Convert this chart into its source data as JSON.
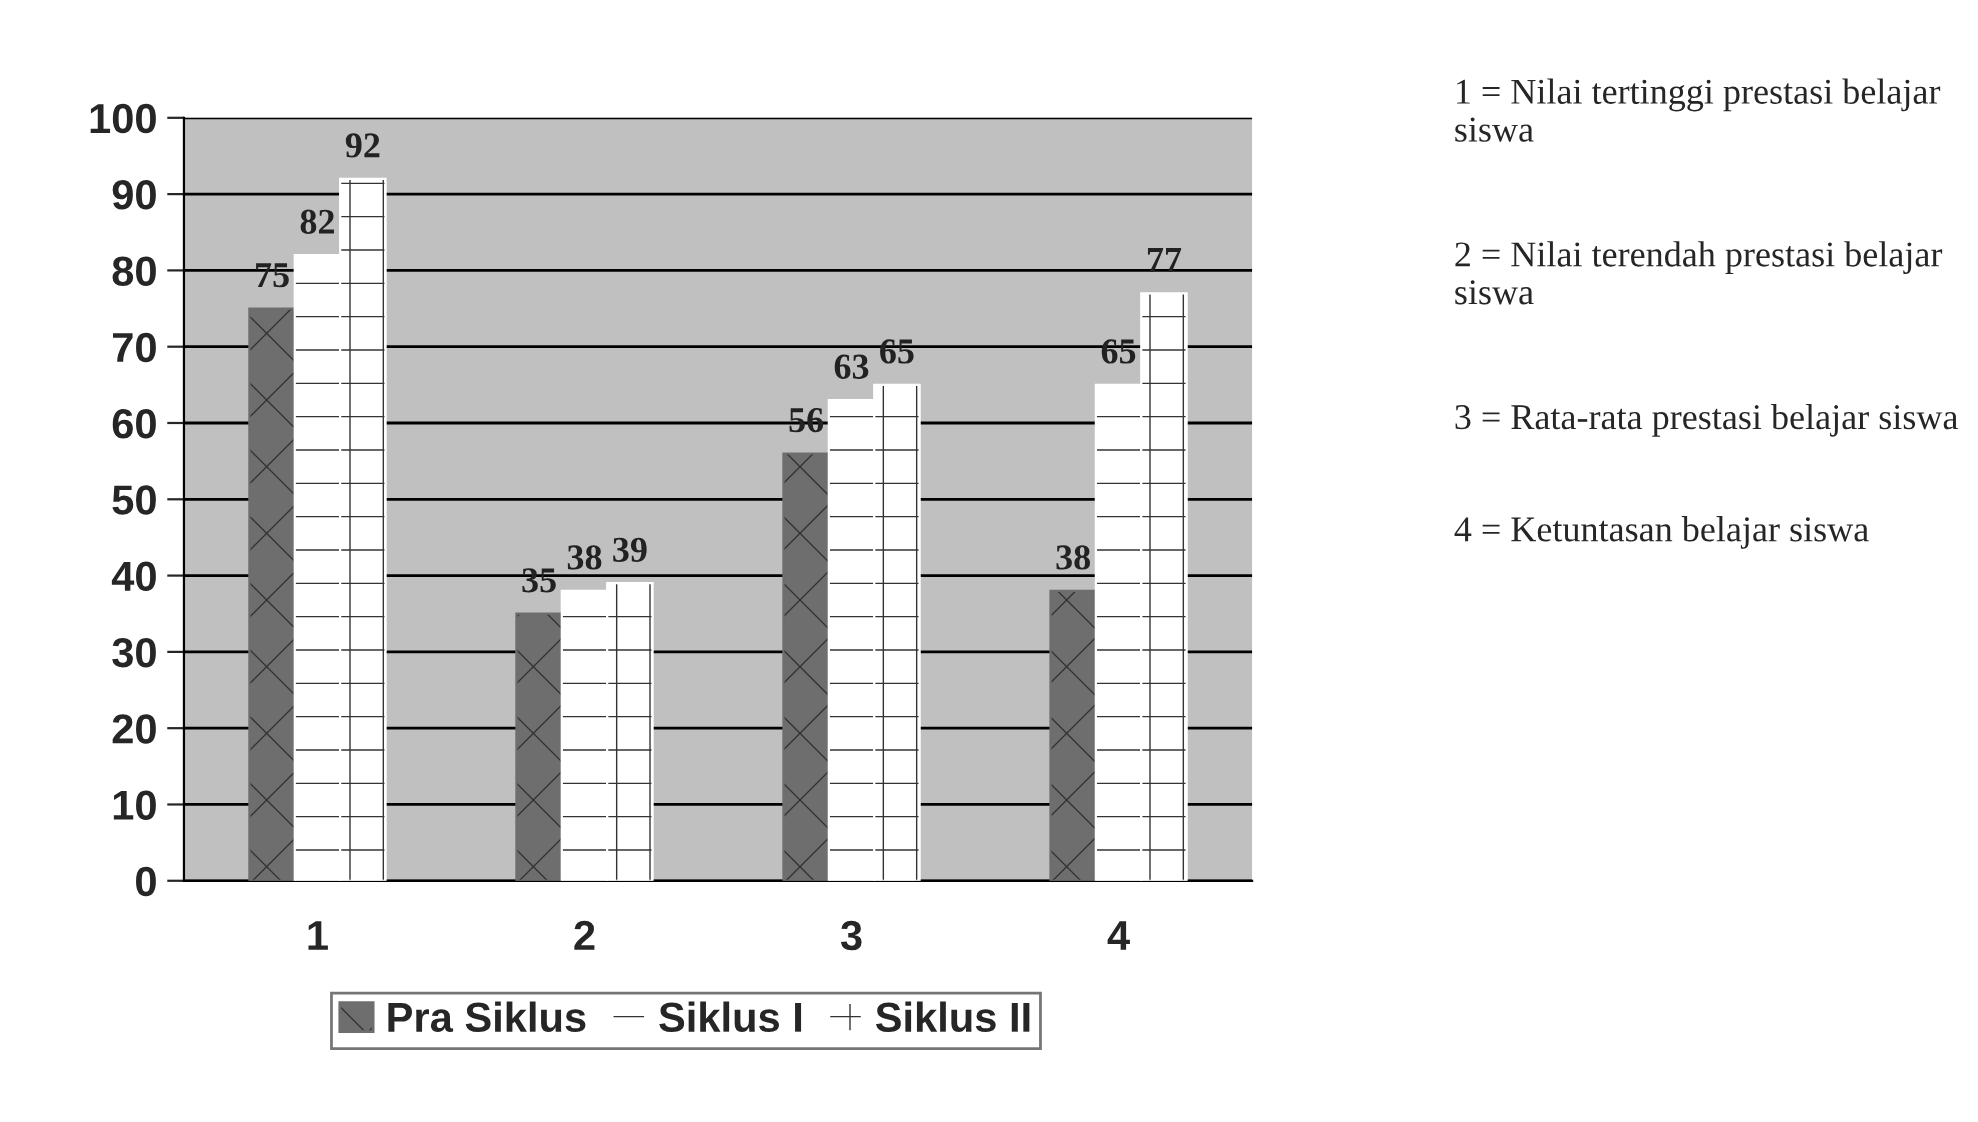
{
  "chart_data": {
    "type": "bar",
    "categories": [
      "1",
      "2",
      "3",
      "4"
    ],
    "series": [
      {
        "name": "Pra Siklus",
        "color": "#6e6e6e",
        "values": [
          75,
          35,
          56,
          38
        ]
      },
      {
        "name": "Siklus I",
        "color": "#ffffff",
        "values": [
          82,
          38,
          63,
          65
        ]
      },
      {
        "name": "Siklus II",
        "color": "#ffffff",
        "values": [
          92,
          39,
          65,
          77
        ]
      }
    ],
    "ylim": [
      0,
      100
    ],
    "yticks": [
      0,
      10,
      20,
      30,
      40,
      50,
      60,
      70,
      80,
      90,
      100
    ],
    "grid": "y",
    "legend": "bottom",
    "data_labels": true,
    "annotations": [
      "1 = Nilai tertinggi prestasi belajar siswa",
      "2 = Nilai terendah prestasi belajar siswa",
      "3 = Rata-rata prestasi belajar siswa",
      "4 = Ketuntasan belajar siswa"
    ]
  }
}
